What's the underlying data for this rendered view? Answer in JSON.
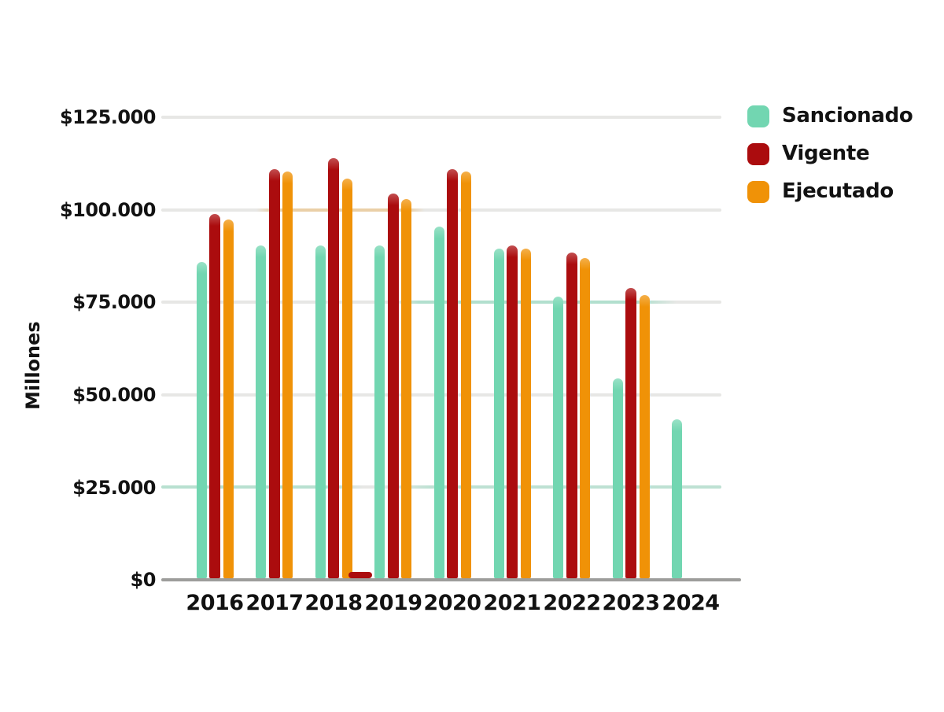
{
  "page": {
    "background": "#ffffff"
  },
  "chart": {
    "y_axis_title": "Millones",
    "y_tick_labels": [
      "$125.000",
      "$100.000",
      "$75.000",
      "$50.000",
      "$25.000",
      "$0"
    ],
    "x_labels": [
      "2016",
      "2017",
      "2018",
      "2019",
      "2020",
      "2021",
      "2022",
      "2023",
      "2024"
    ],
    "legend": {
      "items": [
        {
          "label": "Sancionado",
          "color": "#72d6b1"
        },
        {
          "label": "Vigente",
          "color": "#ab0c0e"
        },
        {
          "label": "Ejecutado",
          "color": "#f09207"
        }
      ]
    }
  },
  "chart_data": {
    "type": "bar",
    "title": "",
    "xlabel": "",
    "ylabel": "Millones",
    "currency_format": "es-AR",
    "categories": [
      "2016",
      "2017",
      "2018",
      "2019",
      "2020",
      "2021",
      "2022",
      "2023",
      "2024"
    ],
    "series": [
      {
        "name": "Sancionado",
        "color": "#72d6b1",
        "values": [
          85500,
          90000,
          90000,
          90000,
          95000,
          89000,
          76000,
          54000,
          43000
        ]
      },
      {
        "name": "Vigente",
        "color": "#ab0c0e",
        "values": [
          98500,
          110500,
          113500,
          104000,
          110500,
          90000,
          88000,
          78500,
          null
        ]
      },
      {
        "name": "Ejecutado",
        "color": "#f09207",
        "values": [
          97000,
          110000,
          108000,
          102500,
          110000,
          89000,
          86500,
          76500,
          null
        ]
      }
    ],
    "ylim": [
      0,
      125000
    ],
    "ytick_step": 25000,
    "grid": true,
    "legend_position": "top-right"
  }
}
